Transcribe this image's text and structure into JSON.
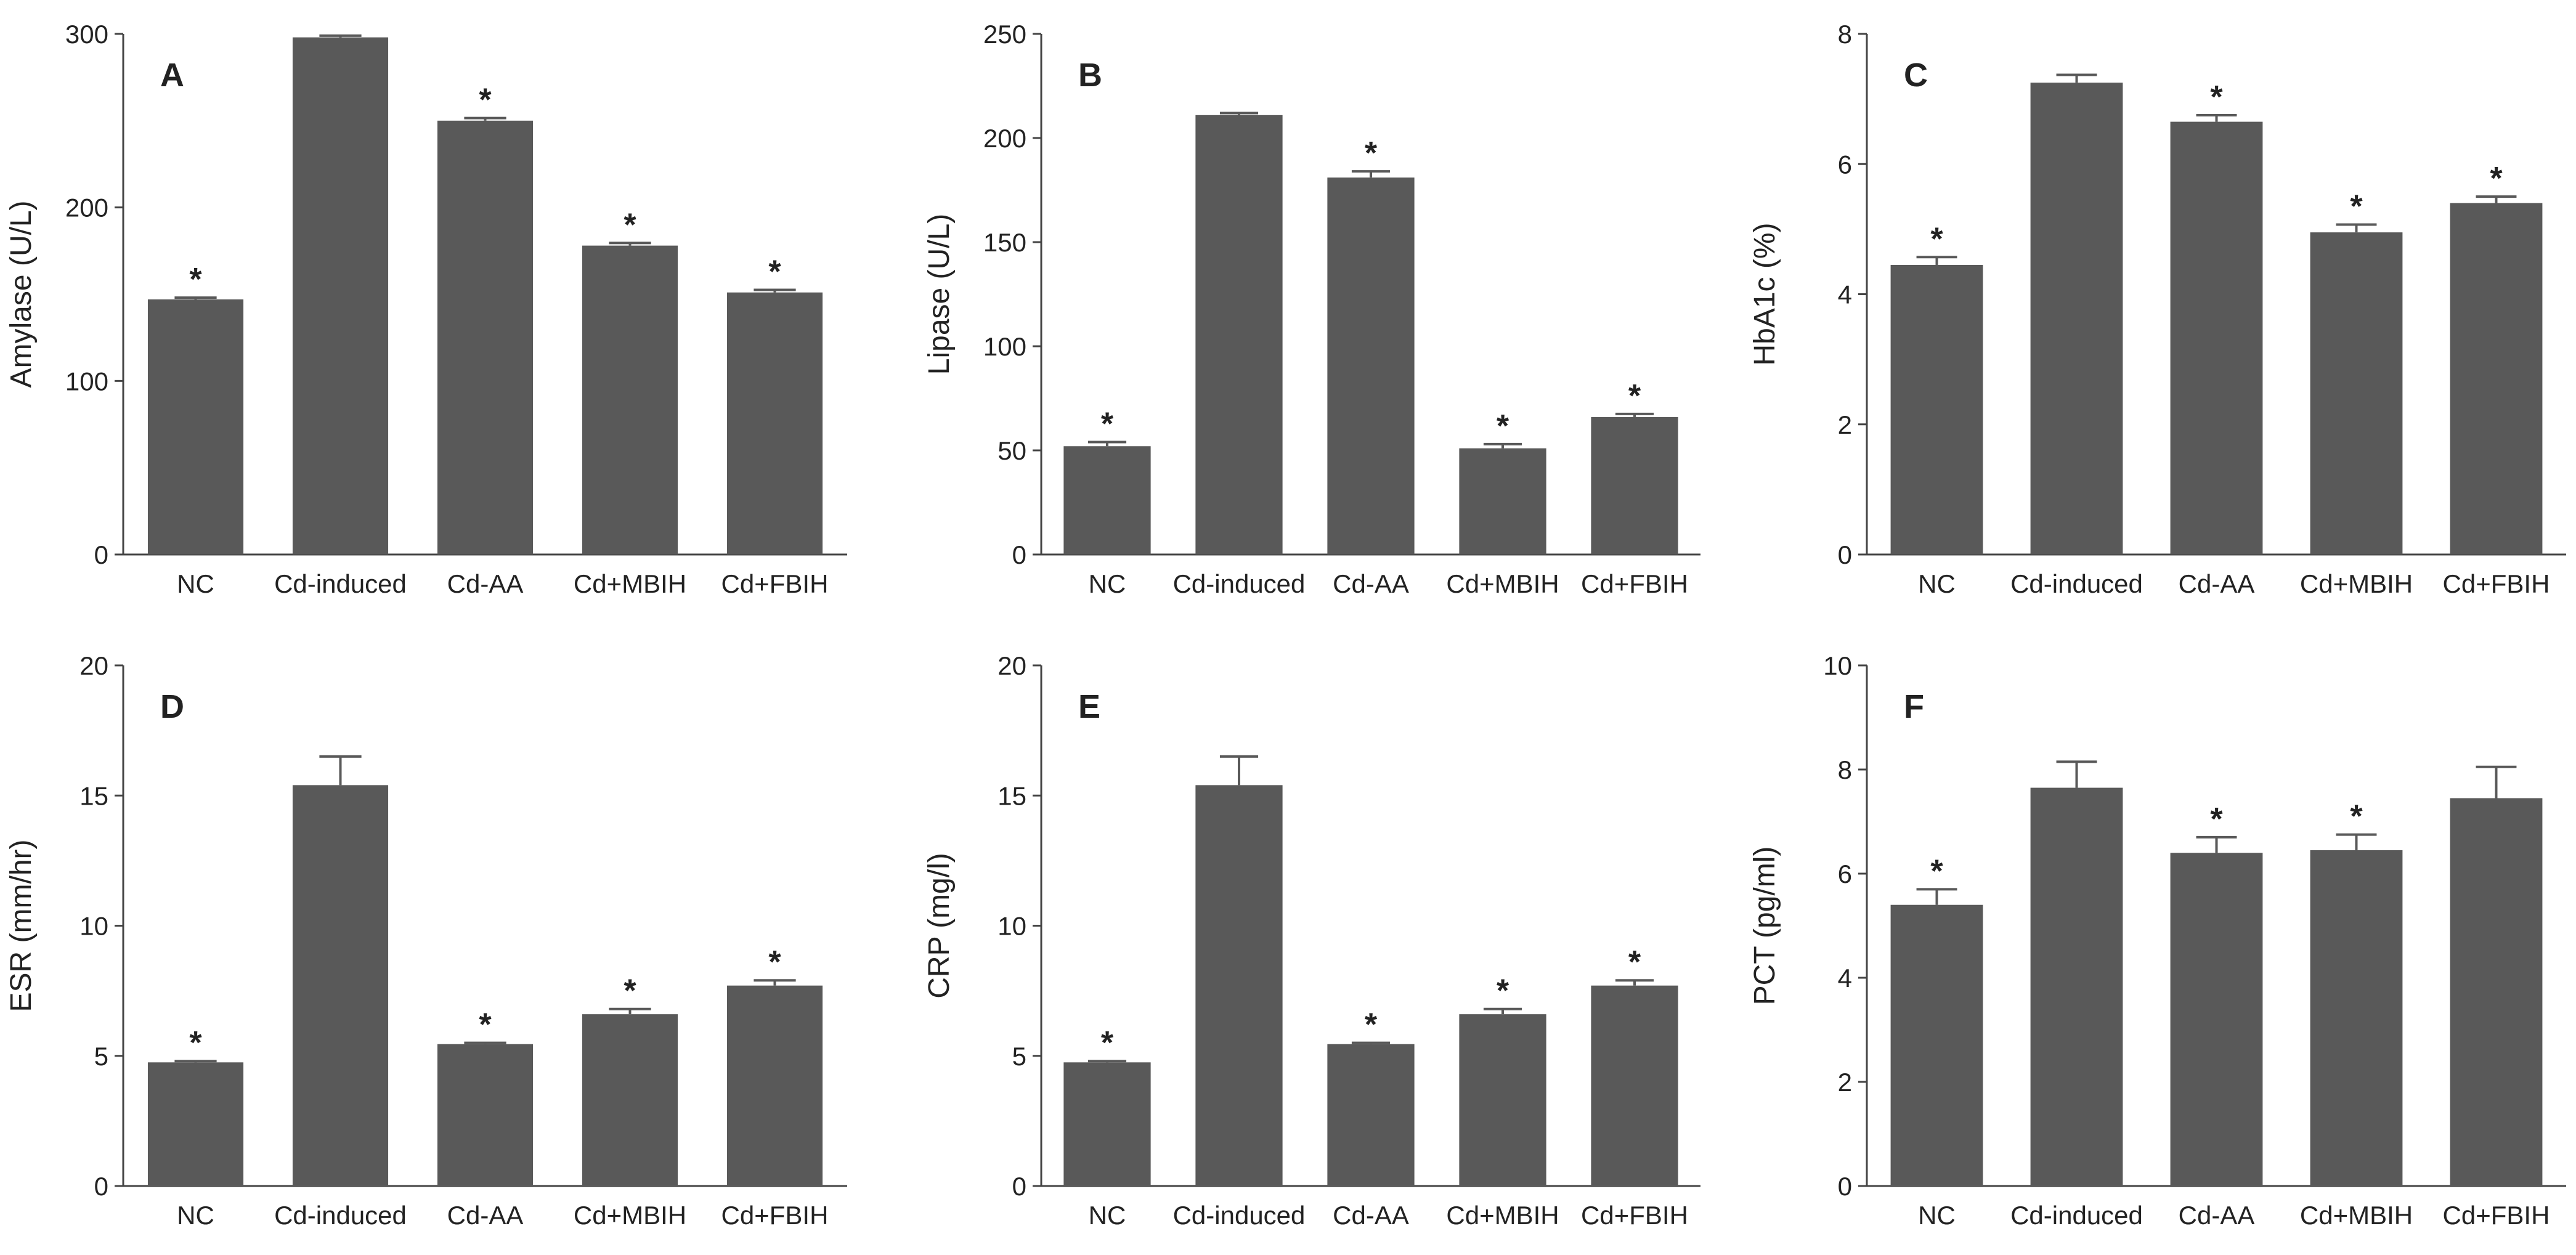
{
  "colors": {
    "bar": "#595959",
    "axis": "#444444",
    "text": "#222222",
    "background": "#ffffff"
  },
  "chart_data": [
    {
      "type": "bar",
      "panel": "A",
      "ylabel": "Amylase (U/L)",
      "ylim": [
        0,
        300
      ],
      "yticks": [
        "0",
        "100",
        "200",
        "300"
      ],
      "yticks_values": [
        0,
        100,
        200,
        300
      ],
      "categories": [
        "NC",
        "Cd-induced",
        "Cd-AA",
        "Cd+MBIH",
        "Cd+FBIH"
      ],
      "values": [
        147,
        298,
        250,
        178,
        151
      ],
      "errors": [
        1,
        1,
        1.5,
        1.5,
        1.5
      ],
      "significant": [
        true,
        false,
        true,
        true,
        true
      ],
      "significance_marker": "*"
    },
    {
      "type": "bar",
      "panel": "B",
      "ylabel": "Lipase (U/L)",
      "ylim": [
        0,
        250
      ],
      "yticks": [
        "0",
        "50",
        "100",
        "150",
        "200",
        "250"
      ],
      "yticks_values": [
        0,
        50,
        100,
        150,
        200,
        250
      ],
      "categories": [
        "NC",
        "Cd-induced",
        "Cd-AA",
        "Cd+MBIH",
        "Cd+FBIH"
      ],
      "values": [
        52,
        211,
        181,
        51,
        66
      ],
      "errors": [
        2,
        1,
        3,
        2,
        1.5
      ],
      "significant": [
        true,
        false,
        true,
        true,
        true
      ],
      "significance_marker": "*"
    },
    {
      "type": "bar",
      "panel": "C",
      "ylabel": "HbA1c (%)",
      "ylim": [
        0,
        8
      ],
      "yticks": [
        "0",
        "2",
        "4",
        "6",
        "8"
      ],
      "yticks_values": [
        0,
        2,
        4,
        6,
        8
      ],
      "categories": [
        "NC",
        "Cd-induced",
        "Cd-AA",
        "Cd+MBIH",
        "Cd+FBIH"
      ],
      "values": [
        4.45,
        7.25,
        6.65,
        4.95,
        5.4
      ],
      "errors": [
        0.12,
        0.12,
        0.1,
        0.12,
        0.1
      ],
      "significant": [
        true,
        false,
        true,
        true,
        true
      ],
      "significance_marker": "*"
    },
    {
      "type": "bar",
      "panel": "D",
      "ylabel": "ESR (mm/hr)",
      "ylim": [
        0,
        20
      ],
      "yticks": [
        "0",
        "5",
        "10",
        "15",
        "20"
      ],
      "yticks_values": [
        0,
        5,
        10,
        15,
        20
      ],
      "categories": [
        "NC",
        "Cd-induced",
        "Cd-AA",
        "Cd+MBIH",
        "Cd+FBIH"
      ],
      "values": [
        4.75,
        15.4,
        5.45,
        6.6,
        7.7
      ],
      "errors": [
        0.05,
        1.1,
        0.05,
        0.2,
        0.2
      ],
      "significant": [
        true,
        false,
        true,
        true,
        true
      ],
      "significance_marker": "*"
    },
    {
      "type": "bar",
      "panel": "E",
      "ylabel": "CRP (mg/l)",
      "ylim": [
        0,
        20
      ],
      "yticks": [
        "0",
        "5",
        "10",
        "15",
        "20"
      ],
      "yticks_values": [
        0,
        5,
        10,
        15,
        20
      ],
      "categories": [
        "NC",
        "Cd-induced",
        "Cd-AA",
        "Cd+MBIH",
        "Cd+FBIH"
      ],
      "values": [
        4.75,
        15.4,
        5.45,
        6.6,
        7.7
      ],
      "errors": [
        0.05,
        1.1,
        0.05,
        0.2,
        0.2
      ],
      "significant": [
        true,
        false,
        true,
        true,
        true
      ],
      "significance_marker": "*"
    },
    {
      "type": "bar",
      "panel": "F",
      "ylabel": "PCT (pg/ml)",
      "ylim": [
        0,
        10
      ],
      "yticks": [
        "0",
        "2",
        "4",
        "6",
        "8",
        "10"
      ],
      "yticks_values": [
        0,
        2,
        4,
        6,
        8,
        10
      ],
      "categories": [
        "NC",
        "Cd-induced",
        "Cd-AA",
        "Cd+MBIH",
        "Cd+FBIH"
      ],
      "values": [
        5.4,
        7.65,
        6.4,
        6.45,
        7.45
      ],
      "errors": [
        0.3,
        0.5,
        0.3,
        0.3,
        0.6
      ],
      "significant": [
        true,
        false,
        true,
        true,
        false
      ],
      "significance_marker": "*"
    }
  ]
}
